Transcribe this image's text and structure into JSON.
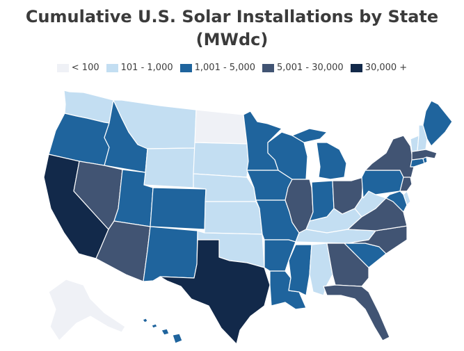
{
  "title_line1": "Cumulative U.S. Solar Installations by State",
  "title_line2": "(MWdc)",
  "legend": [
    {
      "label": "< 100",
      "color": "#eff1f6"
    },
    {
      "label": "101 - 1,000",
      "color": "#c3def2"
    },
    {
      "label": "1,001 - 5,000",
      "color": "#1f649d"
    },
    {
      "label": "5,001 - 30,000",
      "color": "#415473"
    },
    {
      "label": "30,000 +",
      "color": "#12294a"
    }
  ],
  "states": [
    {
      "name": "WA",
      "cat": 1
    },
    {
      "name": "OR",
      "cat": 2
    },
    {
      "name": "CA",
      "cat": 4
    },
    {
      "name": "ID",
      "cat": 2
    },
    {
      "name": "NV",
      "cat": 3
    },
    {
      "name": "MT",
      "cat": 1
    },
    {
      "name": "WY",
      "cat": 1
    },
    {
      "name": "UT",
      "cat": 2
    },
    {
      "name": "AZ",
      "cat": 3
    },
    {
      "name": "CO",
      "cat": 2
    },
    {
      "name": "NM",
      "cat": 2
    },
    {
      "name": "ND",
      "cat": 0
    },
    {
      "name": "SD",
      "cat": 1
    },
    {
      "name": "NE",
      "cat": 1
    },
    {
      "name": "KS",
      "cat": 1
    },
    {
      "name": "OK",
      "cat": 1
    },
    {
      "name": "TX",
      "cat": 4
    },
    {
      "name": "MN",
      "cat": 2
    },
    {
      "name": "IA",
      "cat": 2
    },
    {
      "name": "MO",
      "cat": 2
    },
    {
      "name": "AR",
      "cat": 2
    },
    {
      "name": "LA",
      "cat": 2
    },
    {
      "name": "WI",
      "cat": 2
    },
    {
      "name": "IL",
      "cat": 3
    },
    {
      "name": "MI",
      "cat": 2
    },
    {
      "name": "IN",
      "cat": 2
    },
    {
      "name": "OH",
      "cat": 3
    },
    {
      "name": "KY",
      "cat": 1
    },
    {
      "name": "TN",
      "cat": 1
    },
    {
      "name": "MS",
      "cat": 2
    },
    {
      "name": "AL",
      "cat": 1
    },
    {
      "name": "GA",
      "cat": 3
    },
    {
      "name": "FL",
      "cat": 3
    },
    {
      "name": "SC",
      "cat": 2
    },
    {
      "name": "NC",
      "cat": 3
    },
    {
      "name": "VA",
      "cat": 3
    },
    {
      "name": "WV",
      "cat": 1
    },
    {
      "name": "PA",
      "cat": 2
    },
    {
      "name": "NY",
      "cat": 3
    },
    {
      "name": "MD",
      "cat": 2
    },
    {
      "name": "DE",
      "cat": 1
    },
    {
      "name": "NJ",
      "cat": 3
    },
    {
      "name": "CT",
      "cat": 2
    },
    {
      "name": "RI",
      "cat": 2
    },
    {
      "name": "MA",
      "cat": 3
    },
    {
      "name": "VT",
      "cat": 1
    },
    {
      "name": "NH",
      "cat": 1
    },
    {
      "name": "ME",
      "cat": 2
    },
    {
      "name": "AK",
      "cat": 0
    },
    {
      "name": "HI",
      "cat": 2
    }
  ]
}
